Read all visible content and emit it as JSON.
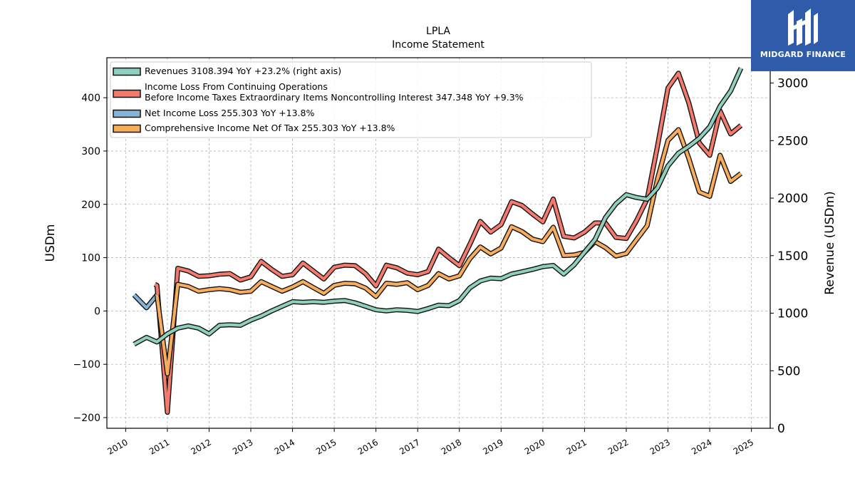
{
  "logo": {
    "text": "MIDGARD FINANCE"
  },
  "chart_data": {
    "type": "line",
    "title": "LPLA",
    "subtitle": "Income Statement",
    "ylabel": "USDm",
    "ylabel_right": "Revenue (USDm)",
    "ylim": [
      -220,
      475
    ],
    "ylim_right": [
      0,
      3220
    ],
    "xlim": [
      2009.55,
      2025.45
    ],
    "x_ticks": [
      2010,
      2011,
      2012,
      2013,
      2014,
      2015,
      2016,
      2017,
      2018,
      2019,
      2020,
      2021,
      2022,
      2023,
      2024,
      2025
    ],
    "x_tick_labels": [
      "2010",
      "2011",
      "2012",
      "2013",
      "2014",
      "2015",
      "2016",
      "2017",
      "2018",
      "2019",
      "2020",
      "2021",
      "2022",
      "2023",
      "2024",
      "2025"
    ],
    "y_ticks": [
      -200,
      -100,
      0,
      100,
      200,
      300,
      400
    ],
    "y_tick_labels": [
      "−200",
      "−100",
      "0",
      "100",
      "200",
      "300",
      "400"
    ],
    "y_ticks_right": [
      0,
      500,
      1000,
      1500,
      2000,
      2500,
      3000
    ],
    "y_tick_labels_right": [
      "0",
      "500",
      "1000",
      "1500",
      "2000",
      "2500",
      "3000"
    ],
    "grid": true,
    "legend_position": "top-left",
    "series": [
      {
        "name": "Income Loss From Continuing Operations Before Income Taxes Extraordinary Items Noncontrolling Interest",
        "legend": [
          "Income Loss From Continuing Operations",
          "Before Income Taxes Extraordinary Items Noncontrolling Interest  347.348 YoY +9.3%"
        ],
        "color": "#f47a6e",
        "axis": "left",
        "x": [
          2010.7,
          2010.75,
          2011.0,
          2011.25,
          2011.5,
          2011.75,
          2012.0,
          2012.25,
          2012.5,
          2012.75,
          2013.0,
          2013.25,
          2013.5,
          2013.75,
          2014.0,
          2014.25,
          2014.5,
          2014.75,
          2015.0,
          2015.25,
          2015.5,
          2015.75,
          2016.0,
          2016.25,
          2016.5,
          2016.75,
          2017.0,
          2017.25,
          2017.5,
          2017.75,
          2018.0,
          2018.25,
          2018.5,
          2018.75,
          2019.0,
          2019.25,
          2019.5,
          2019.75,
          2020.0,
          2020.25,
          2020.5,
          2020.75,
          2021.0,
          2021.25,
          2021.5,
          2021.75,
          2022.0,
          2022.25,
          2022.5,
          2022.75,
          2023.0,
          2023.25,
          2023.5,
          2023.75,
          2024.0,
          2024.25,
          2024.5,
          2024.75
        ],
        "y": [
          50,
          48,
          -190,
          80,
          75,
          65,
          66,
          69,
          70,
          58,
          64,
          93,
          78,
          65,
          68,
          90,
          75,
          60,
          82,
          86,
          85,
          70,
          47,
          86,
          81,
          71,
          68,
          74,
          116,
          100,
          85,
          125,
          168,
          148,
          162,
          205,
          198,
          182,
          167,
          210,
          140,
          137,
          148,
          165,
          165,
          138,
          136,
          170,
          210,
          310,
          418,
          446,
          390,
          315,
          292,
          375,
          332,
          348
        ]
      },
      {
        "name": "Net Income Loss",
        "legend": [
          "Net Income Loss  255.303 YoY +13.8%"
        ],
        "color": "#86b4d6",
        "axis": "left",
        "x": [
          2010.2,
          2010.5,
          2010.75
        ],
        "y": [
          30,
          6,
          30
        ]
      },
      {
        "name": "Comprehensive Income Net Of Tax",
        "legend": [
          "Comprehensive Income Net Of Tax  255.303 YoY +13.8%"
        ],
        "color": "#f8ad5c",
        "axis": "left",
        "x": [
          2010.75,
          2011.0,
          2011.25,
          2011.5,
          2011.75,
          2012.0,
          2012.25,
          2012.5,
          2012.75,
          2013.0,
          2013.25,
          2013.5,
          2013.75,
          2014.0,
          2014.25,
          2014.5,
          2014.75,
          2015.0,
          2015.25,
          2015.5,
          2015.75,
          2016.0,
          2016.25,
          2016.5,
          2016.75,
          2017.0,
          2017.25,
          2017.5,
          2017.75,
          2018.0,
          2018.25,
          2018.5,
          2018.75,
          2019.0,
          2019.25,
          2019.5,
          2019.75,
          2020.0,
          2020.25,
          2020.5,
          2020.75,
          2021.0,
          2021.25,
          2021.5,
          2021.75,
          2022.0,
          2022.25,
          2022.5,
          2022.75,
          2023.0,
          2023.25,
          2023.5,
          2023.75,
          2024.0,
          2024.25,
          2024.5,
          2024.75
        ],
        "y": [
          30,
          -118,
          50,
          46,
          37,
          40,
          42,
          40,
          35,
          37,
          55,
          46,
          37,
          45,
          55,
          44,
          33,
          48,
          52,
          51,
          43,
          27,
          52,
          50,
          53,
          40,
          48,
          70,
          60,
          66,
          98,
          120,
          107,
          118,
          158,
          149,
          135,
          130,
          157,
          104,
          105,
          110,
          130,
          119,
          103,
          108,
          134,
          160,
          248,
          320,
          340,
          286,
          223,
          215,
          292,
          243,
          258
        ]
      },
      {
        "name": "Revenues",
        "legend": [
          "Revenues  3108.394 YoY +23.2% (right axis)"
        ],
        "color": "#8fcfbe",
        "axis": "right",
        "x": [
          2010.2,
          2010.5,
          2010.75,
          2011.0,
          2011.25,
          2011.5,
          2011.75,
          2012.0,
          2012.25,
          2012.5,
          2012.75,
          2013.0,
          2013.25,
          2013.5,
          2013.75,
          2014.0,
          2014.25,
          2014.5,
          2014.75,
          2015.0,
          2015.25,
          2015.5,
          2015.75,
          2016.0,
          2016.25,
          2016.5,
          2016.75,
          2017.0,
          2017.25,
          2017.5,
          2017.75,
          2018.0,
          2018.25,
          2018.5,
          2018.75,
          2019.0,
          2019.25,
          2019.5,
          2019.75,
          2020.0,
          2020.25,
          2020.5,
          2020.75,
          2021.0,
          2021.25,
          2021.5,
          2021.75,
          2022.0,
          2022.25,
          2022.5,
          2022.75,
          2023.0,
          2023.25,
          2023.5,
          2023.75,
          2024.0,
          2024.25,
          2024.5,
          2024.75
        ],
        "y": [
          730,
          790,
          750,
          820,
          870,
          890,
          870,
          820,
          895,
          900,
          895,
          940,
          975,
          1020,
          1060,
          1100,
          1095,
          1100,
          1095,
          1105,
          1110,
          1090,
          1060,
          1030,
          1020,
          1030,
          1025,
          1015,
          1040,
          1070,
          1065,
          1110,
          1220,
          1280,
          1305,
          1300,
          1340,
          1360,
          1380,
          1405,
          1415,
          1340,
          1420,
          1530,
          1640,
          1830,
          1950,
          2030,
          2005,
          1990,
          2090,
          2280,
          2390,
          2450,
          2520,
          2620,
          2800,
          2930,
          3130
        ]
      }
    ]
  }
}
